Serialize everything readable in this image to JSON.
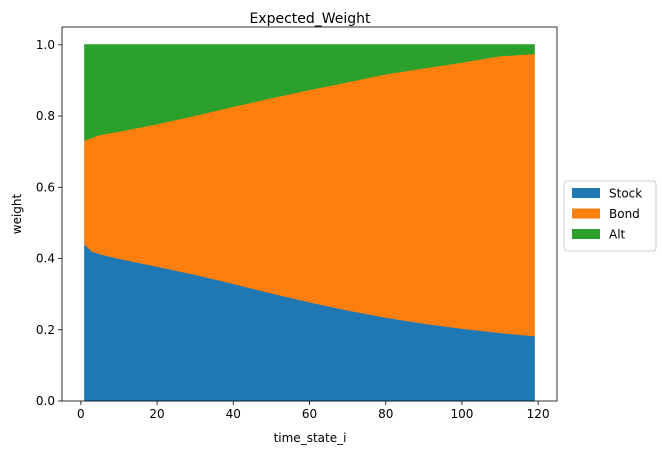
{
  "chart_data": {
    "type": "area",
    "stacked": true,
    "title": "Expected_Weight",
    "xlabel": "time_state_i",
    "ylabel": "weight",
    "xlim": [
      -4.95,
      124.95
    ],
    "ylim": [
      0.0,
      1.05
    ],
    "xticks": [
      0,
      20,
      40,
      60,
      80,
      100,
      120
    ],
    "yticks": [
      0.0,
      0.2,
      0.4,
      0.6,
      0.8,
      1.0
    ],
    "xtick_labels": [
      "0",
      "20",
      "40",
      "60",
      "80",
      "100",
      "120"
    ],
    "ytick_labels": [
      "0.0",
      "0.2",
      "0.4",
      "0.6",
      "0.8",
      "1.0"
    ],
    "legend_position": "center-right-outside",
    "x": [
      1,
      2,
      3,
      5,
      10,
      20,
      30,
      40,
      50,
      60,
      70,
      80,
      90,
      100,
      110,
      119
    ],
    "series": [
      {
        "name": "Stock",
        "color": "#1f77b4",
        "values": [
          0.44,
          0.43,
          0.42,
          0.413,
          0.4,
          0.378,
          0.355,
          0.33,
          0.303,
          0.278,
          0.255,
          0.235,
          0.218,
          0.204,
          0.192,
          0.183
        ]
      },
      {
        "name": "Bond",
        "color": "#ff7f0e",
        "values": [
          0.292,
          0.306,
          0.32,
          0.335,
          0.357,
          0.4,
          0.447,
          0.497,
          0.548,
          0.596,
          0.641,
          0.683,
          0.717,
          0.747,
          0.777,
          0.792
        ]
      },
      {
        "name": "Alt",
        "color": "#2ca02c",
        "values": [
          0.268,
          0.264,
          0.26,
          0.252,
          0.243,
          0.222,
          0.198,
          0.173,
          0.149,
          0.126,
          0.104,
          0.082,
          0.065,
          0.049,
          0.031,
          0.025
        ]
      }
    ]
  }
}
